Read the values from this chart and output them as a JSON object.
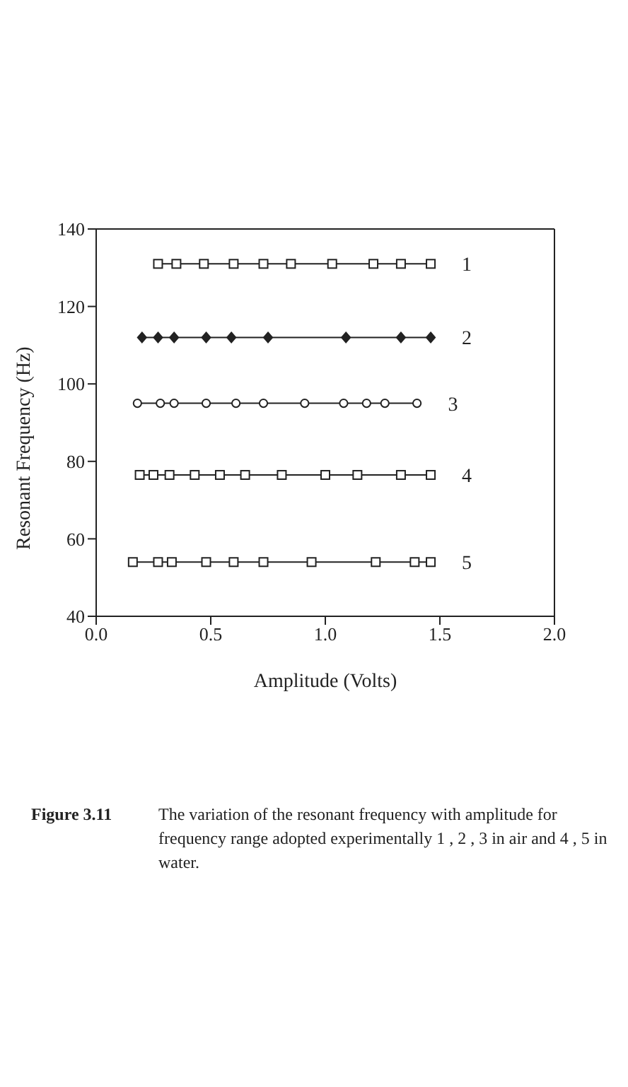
{
  "chart_data": {
    "type": "line",
    "xlabel": "Amplitude  (Volts)",
    "ylabel": "Resonant  Frequency  (Hz)",
    "xlim": [
      0,
      2
    ],
    "xticks": [
      {
        "value": 0,
        "label": "0.0"
      },
      {
        "value": 0.5,
        "label": "0.5"
      },
      {
        "value": 1,
        "label": "1.0"
      },
      {
        "value": 1.5,
        "label": "1.5"
      },
      {
        "value": 2,
        "label": "2.0"
      }
    ],
    "ylim": [
      40,
      140
    ],
    "yticks": [
      40,
      60,
      80,
      100,
      120,
      140
    ],
    "line_style": "solid",
    "series": [
      {
        "name": "1",
        "color": "#222222",
        "marker": "square",
        "x": [
          0.27,
          0.35,
          0.47,
          0.6,
          0.73,
          0.85,
          1.03,
          1.21,
          1.33,
          1.46
        ],
        "values": [
          131,
          131,
          131,
          131,
          131,
          131,
          131,
          131,
          131,
          131
        ]
      },
      {
        "name": "2",
        "color": "#222222",
        "marker": "diamond",
        "x": [
          0.2,
          0.27,
          0.34,
          0.48,
          0.59,
          0.75,
          1.09,
          1.33,
          1.46
        ],
        "values": [
          112,
          112,
          112,
          112,
          112,
          112,
          112,
          112,
          112
        ]
      },
      {
        "name": "3",
        "color": "#222222",
        "marker": "circle",
        "x": [
          0.18,
          0.28,
          0.34,
          0.48,
          0.61,
          0.73,
          0.91,
          1.08,
          1.18,
          1.26,
          1.4
        ],
        "values": [
          95,
          95,
          95,
          95,
          95,
          95,
          95,
          95,
          95,
          95,
          95
        ]
      },
      {
        "name": "4",
        "color": "#222222",
        "marker": "square",
        "x": [
          0.19,
          0.25,
          0.32,
          0.43,
          0.54,
          0.65,
          0.81,
          1.0,
          1.14,
          1.33,
          1.46
        ],
        "values": [
          76.5,
          76.5,
          76.5,
          76.5,
          76.5,
          76.5,
          76.5,
          76.5,
          76.5,
          76.5,
          76.5
        ]
      },
      {
        "name": "5",
        "color": "#222222",
        "marker": "square",
        "x": [
          0.16,
          0.27,
          0.33,
          0.48,
          0.6,
          0.73,
          0.94,
          1.22,
          1.39,
          1.46
        ],
        "values": [
          54,
          54,
          54,
          54,
          54,
          54,
          54,
          54,
          54,
          54
        ]
      }
    ],
    "annotations": [
      "Figure 3.11",
      "The variation of the resonant frequency with amplitude for frequency range adopted experimentally 1 , 2 , 3 in air and 4 , 5 in water."
    ]
  }
}
